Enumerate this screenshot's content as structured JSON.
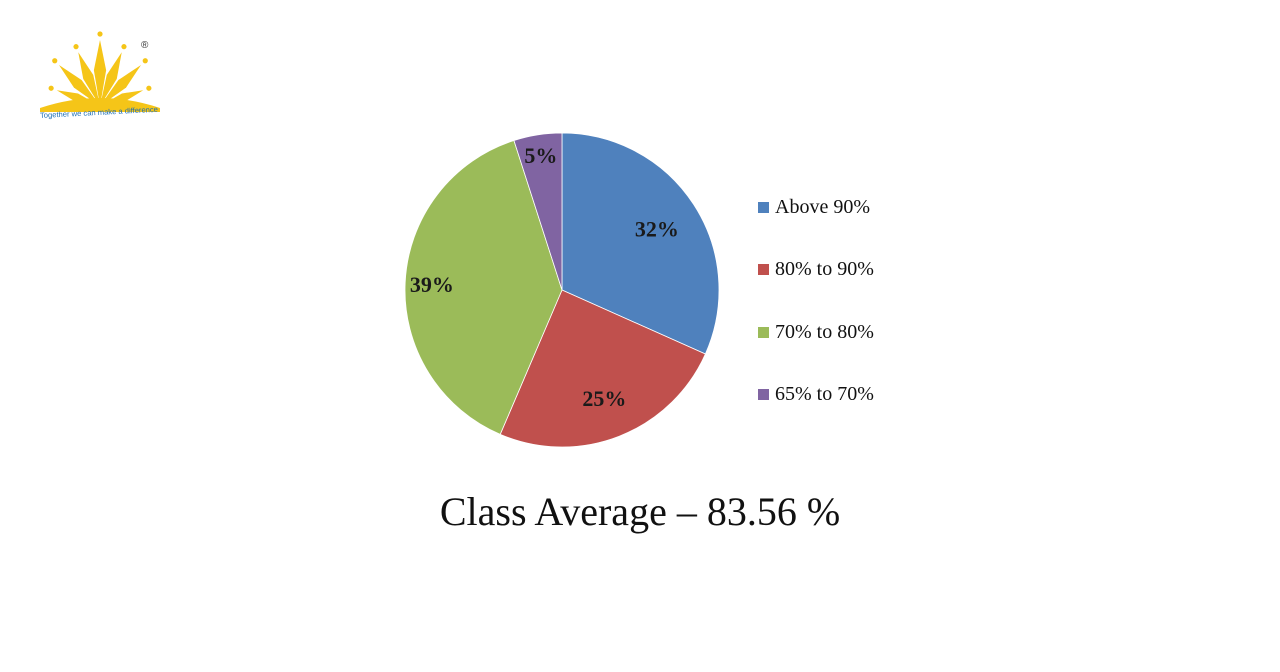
{
  "logo": {
    "tagline": "Together we can make a difference",
    "registered_mark": "®",
    "color": "#f5c518"
  },
  "chart_data": {
    "type": "pie",
    "categories": [
      "Above 90%",
      "80% to 90%",
      "70% to 80%",
      "65% to 70%"
    ],
    "values": [
      32,
      25,
      39,
      5
    ],
    "data_labels": [
      "32%",
      "25%",
      "39%",
      "5%"
    ],
    "colors": [
      "#4f81bd",
      "#c0504d",
      "#9bbb59",
      "#8064a2"
    ],
    "start": "12 o'clock",
    "direction": "clockwise",
    "legend_position": "right"
  },
  "caption": {
    "text": "Class Average – 83.56 %"
  }
}
